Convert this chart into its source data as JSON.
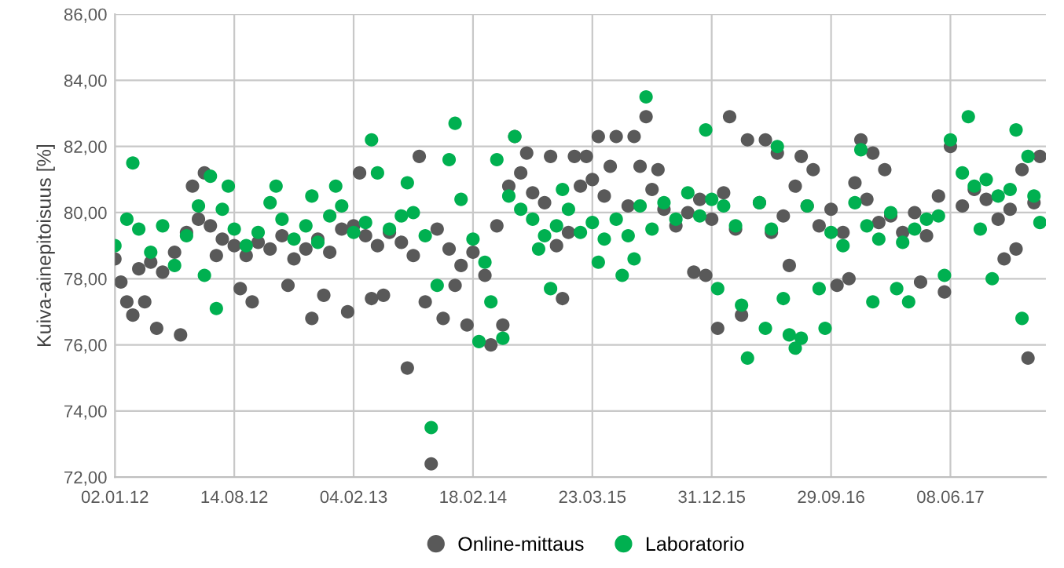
{
  "chart_data": {
    "type": "scatter",
    "ylabel": "Kuiva-ainepitoisuus [%]",
    "ylim": [
      72,
      86
    ],
    "categories": [
      "02.01.12",
      null,
      null,
      null,
      null,
      null,
      null,
      null,
      null,
      null,
      null,
      null,
      null,
      null,
      null,
      null,
      null,
      null,
      null,
      null,
      "14.08.12",
      null,
      null,
      null,
      null,
      null,
      null,
      null,
      null,
      null,
      null,
      null,
      null,
      null,
      null,
      null,
      null,
      null,
      null,
      null,
      "04.02.13",
      null,
      null,
      null,
      null,
      null,
      null,
      null,
      null,
      null,
      null,
      null,
      null,
      null,
      null,
      null,
      null,
      null,
      null,
      null,
      "18.02.14",
      null,
      null,
      null,
      null,
      null,
      null,
      null,
      null,
      null,
      null,
      null,
      null,
      null,
      null,
      null,
      null,
      null,
      null,
      null,
      "23.03.15",
      null,
      null,
      null,
      null,
      null,
      null,
      null,
      null,
      null,
      null,
      null,
      null,
      null,
      null,
      null,
      null,
      null,
      null,
      null,
      "31.12.15",
      null,
      null,
      null,
      null,
      null,
      null,
      null,
      null,
      null,
      null,
      null,
      null,
      null,
      null,
      null,
      null,
      null,
      null,
      null,
      "29.09.16",
      null,
      null,
      null,
      null,
      null,
      null,
      null,
      null,
      null,
      null,
      null,
      null,
      null,
      null,
      null,
      null,
      null,
      null,
      null,
      "08.06.17",
      null,
      null,
      null,
      null,
      null,
      null,
      null,
      null,
      null,
      null,
      null,
      null,
      null,
      null,
      null
    ],
    "yticks": [
      {
        "value": 72,
        "label": "72,00"
      },
      {
        "value": 74,
        "label": "74,00"
      },
      {
        "value": 76,
        "label": "76,00"
      },
      {
        "value": 78,
        "label": "78,00"
      },
      {
        "value": 80,
        "label": "80,00"
      },
      {
        "value": 82,
        "label": "82,00"
      },
      {
        "value": 84,
        "label": "84,00"
      },
      {
        "value": 86,
        "label": "86,00"
      }
    ],
    "grid": true,
    "legend": "bottom",
    "marker": "circle",
    "series": [
      {
        "name": "Online-mittaus",
        "color": "#595959",
        "values": [
          78.6,
          77.9,
          77.3,
          76.9,
          78.3,
          77.3,
          78.5,
          76.5,
          78.2,
          null,
          78.8,
          76.3,
          79.4,
          80.8,
          79.8,
          81.2,
          79.6,
          78.7,
          79.2,
          null,
          79.0,
          77.7,
          78.7,
          77.3,
          79.1,
          null,
          78.9,
          null,
          79.3,
          77.8,
          78.6,
          null,
          78.9,
          76.8,
          79.2,
          77.5,
          78.8,
          null,
          79.5,
          77.0,
          79.6,
          81.2,
          79.3,
          77.4,
          79.0,
          77.5,
          79.4,
          null,
          79.1,
          75.3,
          78.7,
          81.7,
          77.3,
          72.4,
          79.5,
          76.8,
          78.9,
          77.8,
          78.4,
          76.6,
          78.8,
          null,
          78.1,
          76.0,
          79.6,
          76.6,
          80.8,
          82.3,
          81.2,
          81.8,
          80.6,
          null,
          80.3,
          81.7,
          79.0,
          77.4,
          79.4,
          81.7,
          80.8,
          81.7,
          81.0,
          82.3,
          80.5,
          81.4,
          82.3,
          null,
          80.2,
          82.3,
          81.4,
          82.9,
          80.7,
          81.3,
          80.1,
          null,
          79.6,
          null,
          80.0,
          78.2,
          80.4,
          78.1,
          79.8,
          76.5,
          80.6,
          82.9,
          79.5,
          76.9,
          82.2,
          null,
          80.3,
          82.2,
          79.4,
          81.8,
          79.9,
          78.4,
          80.8,
          81.7,
          80.2,
          81.3,
          79.6,
          null,
          80.1,
          77.8,
          79.4,
          78.0,
          80.9,
          82.2,
          80.4,
          81.8,
          79.7,
          81.3,
          79.9,
          null,
          79.4,
          null,
          80.0,
          77.9,
          79.3,
          null,
          80.5,
          77.6,
          82.0,
          null,
          80.2,
          null,
          80.7,
          null,
          80.4,
          null,
          79.8,
          78.6,
          80.1,
          78.9,
          81.3,
          75.6,
          80.3,
          81.7
        ]
      },
      {
        "name": "Laboratorio",
        "color": "#00b050",
        "values": [
          79.0,
          null,
          79.8,
          81.5,
          79.5,
          null,
          78.8,
          null,
          79.6,
          null,
          78.4,
          null,
          79.3,
          null,
          80.2,
          78.1,
          81.1,
          77.1,
          80.1,
          80.8,
          79.5,
          null,
          79.0,
          null,
          79.4,
          null,
          80.3,
          80.8,
          79.8,
          null,
          79.2,
          null,
          79.6,
          80.5,
          79.1,
          null,
          79.9,
          80.8,
          80.2,
          null,
          79.4,
          null,
          79.7,
          82.2,
          81.2,
          null,
          79.5,
          null,
          79.9,
          80.9,
          80.0,
          null,
          79.3,
          73.5,
          77.8,
          null,
          81.6,
          82.7,
          80.4,
          null,
          79.2,
          76.1,
          78.5,
          77.3,
          81.6,
          76.2,
          80.5,
          82.3,
          80.1,
          null,
          79.8,
          78.9,
          79.3,
          77.7,
          79.6,
          80.7,
          80.1,
          null,
          79.4,
          null,
          79.7,
          78.5,
          79.2,
          null,
          79.8,
          78.1,
          79.3,
          78.6,
          80.2,
          83.5,
          79.5,
          null,
          80.3,
          null,
          79.8,
          null,
          80.6,
          null,
          79.9,
          82.5,
          80.4,
          77.7,
          80.2,
          null,
          79.6,
          77.2,
          75.6,
          null,
          80.3,
          76.5,
          79.5,
          82.0,
          77.4,
          76.3,
          75.9,
          76.2,
          80.2,
          null,
          77.7,
          76.5,
          79.4,
          null,
          79.0,
          null,
          80.3,
          81.9,
          79.6,
          77.3,
          79.2,
          null,
          80.0,
          77.7,
          79.1,
          77.3,
          79.5,
          null,
          79.8,
          null,
          79.9,
          78.1,
          82.2,
          null,
          81.2,
          82.9,
          80.8,
          79.5,
          81.0,
          78.0,
          80.5,
          null,
          80.7,
          82.5,
          76.8,
          81.7,
          80.5,
          79.7
        ]
      }
    ]
  }
}
